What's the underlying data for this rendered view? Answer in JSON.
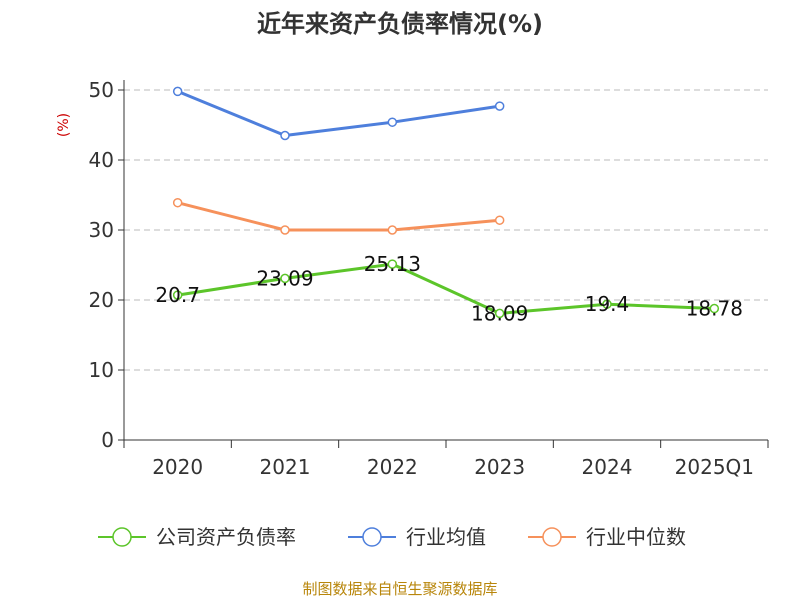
{
  "chart_data": {
    "type": "line",
    "title": "近年来资产负债率情况(%)",
    "ylabel": "(%)",
    "xlabel": "",
    "categories": [
      "2020",
      "2021",
      "2022",
      "2023",
      "2024",
      "2025Q1"
    ],
    "ylim": [
      0,
      50
    ],
    "yticks": [
      0,
      10,
      20,
      30,
      40,
      50
    ],
    "grid": true,
    "legend_position": "bottom",
    "series": [
      {
        "name": "公司资产负债率",
        "color": "#5cc52a",
        "values": [
          20.7,
          23.09,
          25.13,
          18.09,
          19.4,
          18.78
        ],
        "labels": [
          "20.7",
          "23.09",
          "25.13",
          "18.09",
          "19.4",
          "18.78"
        ]
      },
      {
        "name": "行业均值",
        "color": "#4e7fdc",
        "values": [
          49.8,
          43.5,
          45.4,
          47.7,
          null,
          null
        ]
      },
      {
        "name": "行业中位数",
        "color": "#f6915b",
        "values": [
          33.9,
          30.0,
          30.0,
          31.4,
          null,
          null
        ]
      }
    ],
    "source": "制图数据来自恒生聚源数据库"
  }
}
